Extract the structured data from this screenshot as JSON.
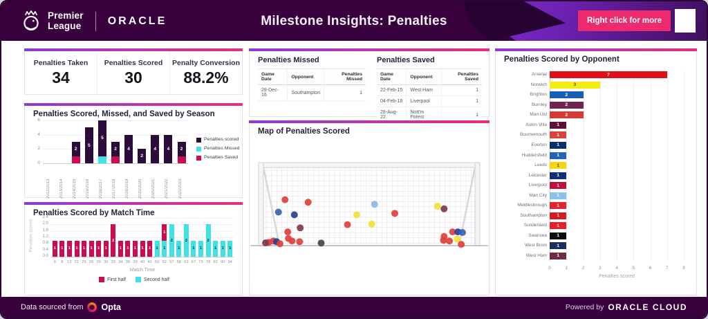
{
  "header": {
    "brand_line1": "Premier",
    "brand_line2": "League",
    "oracle_logo": "ORACLE",
    "title": "Milestone Insights: Penalties",
    "cta_button": "Right click for more"
  },
  "kpis": [
    {
      "label": "Penalties Taken",
      "value": "34"
    },
    {
      "label": "Penalties Scored",
      "value": "30"
    },
    {
      "label": "Penalty Conversion",
      "value": "88.2%"
    }
  ],
  "tables": {
    "missed": {
      "title": "Penalties Missed",
      "headers": [
        "Game Date",
        "Opponent",
        "Penalties Missed"
      ],
      "rows": [
        [
          "28-Dec-16",
          "Southampton",
          "1"
        ]
      ]
    },
    "saved": {
      "title": "Penalties Saved",
      "headers": [
        "Game Date",
        "Opponent",
        "Penalties Saved"
      ],
      "rows": [
        [
          "22-Feb-15",
          "West Ham",
          "1"
        ],
        [
          "04-Feb-18",
          "Liverpool",
          "1"
        ],
        [
          "28-Aug-22",
          "Nott'm Forest",
          "1"
        ]
      ]
    }
  },
  "map": {
    "title": "Map of Penalties Scored",
    "palette": {
      "red": "#e04038",
      "blue": "#3a62b5",
      "navy": "#27418f",
      "lightblue": "#8ab9e6",
      "yellow": "#f2e135",
      "maroon": "#7c3a52",
      "black": "#474747"
    },
    "points": [
      [
        10.2,
        41.2,
        "red"
      ],
      [
        21.1,
        44.5,
        "red"
      ],
      [
        52.5,
        47.1,
        "lightblue"
      ],
      [
        82.3,
        49.6,
        "yellow"
      ],
      [
        85.4,
        52.9,
        "maroon"
      ],
      [
        7.1,
        57.1,
        "blue"
      ],
      [
        14.6,
        60.5,
        "navy"
      ],
      [
        44.1,
        60.5,
        "yellow"
      ],
      [
        62.1,
        58.8,
        "red"
      ],
      [
        39.7,
        73.1,
        "red"
      ],
      [
        51.2,
        72.3,
        "yellow"
      ],
      [
        17.4,
        77.3,
        "maroon"
      ],
      [
        11.5,
        82.4,
        "red"
      ],
      [
        2.5,
        95.8,
        "red"
      ],
      [
        4.7,
        94.1,
        "red"
      ],
      [
        6.2,
        95.0,
        "navy"
      ],
      [
        7.8,
        97.5,
        "red"
      ],
      [
        11.8,
        90.8,
        "red"
      ],
      [
        17.1,
        95.0,
        "red"
      ],
      [
        27.3,
        96.6,
        "black"
      ],
      [
        89.4,
        82.4,
        "red"
      ],
      [
        91.9,
        82.4,
        "navy"
      ],
      [
        94.1,
        83.2,
        "blue"
      ],
      [
        85.4,
        88.2,
        "red"
      ],
      [
        85.1,
        93.3,
        "red"
      ],
      [
        87.9,
        94.1,
        "red"
      ],
      [
        91.6,
        91.6,
        "yellow"
      ],
      [
        93.5,
        98.3,
        "red"
      ],
      [
        1.0,
        96.5,
        "maroon"
      ],
      [
        13.5,
        94.0,
        "red"
      ]
    ]
  },
  "footer": {
    "left_prefix": "Data sourced from",
    "opta": "Opta",
    "right_prefix": "Powered by",
    "oracle_cloud": "ORACLE CLOUD"
  },
  "colors": {
    "header_bg": "#38003c",
    "accent_pink": "#ee2a6e",
    "panel_gradient_left": "#8b3bdb",
    "panel_gradient_right": "#ec2d7c",
    "scored_dark": "#2c0c3a",
    "saved_crimson": "#cb0c51",
    "missed_cyan": "#41e2e5"
  },
  "chart_data": [
    {
      "id": "season",
      "type": "bar",
      "stacked": true,
      "title": "Penalties Scored, Missed, and Saved by Season",
      "categories": [
        "2012/2013",
        "2013/2014",
        "2014/2015",
        "2015/2016",
        "2016/2017",
        "2017/2018",
        "2018/2019",
        "2019/2020",
        "2020/2021",
        "2021/2022",
        "2022/2023"
      ],
      "series": [
        {
          "name": "Penalties scored",
          "color": "#2c0c3a",
          "values": [
            0,
            0,
            2,
            5,
            5,
            2,
            4,
            2,
            4,
            4,
            2
          ]
        },
        {
          "name": "Penalties Missed",
          "color": "#41e2e5",
          "values": [
            0,
            0,
            0,
            0,
            1,
            0,
            0,
            0,
            0,
            0,
            0
          ]
        },
        {
          "name": "Penalties Saved",
          "color": "#cb0c51",
          "values": [
            0,
            0,
            1,
            0,
            0,
            1,
            0,
            0,
            0,
            0,
            1
          ]
        }
      ],
      "ylim": [
        0,
        6
      ],
      "yticks": [
        0,
        2,
        4,
        6
      ],
      "legend_position": "right",
      "grid": true
    },
    {
      "id": "match_time",
      "type": "bar",
      "stacked": true,
      "title": "Penalties Scored by Match Time",
      "xlabel": "Match Time",
      "ylabel": "Penalties scored",
      "categories": [
        "6",
        "8",
        "12",
        "21",
        "25",
        "28",
        "29",
        "30",
        "33",
        "34",
        "38",
        "39",
        "40",
        "41",
        "50",
        "52",
        "57",
        "58",
        "63",
        "67",
        "73",
        "78",
        "82",
        "90",
        "94"
      ],
      "series": [
        {
          "name": "First half",
          "color": "#cb0c51",
          "values": [
            1,
            1,
            1,
            1,
            1,
            1,
            1,
            1,
            2,
            1,
            1,
            1,
            1,
            1,
            0,
            1,
            0,
            0,
            0,
            0,
            0,
            0,
            0,
            0,
            0
          ]
        },
        {
          "name": "Second half",
          "color": "#41e2e5",
          "values": [
            0,
            0,
            0,
            0,
            0,
            0,
            0,
            0,
            0,
            0,
            0,
            0,
            0,
            0,
            1,
            1,
            2,
            1,
            2,
            1,
            1,
            2,
            1,
            1,
            1
          ]
        }
      ],
      "ylim": [
        0,
        2.4
      ],
      "yticks": [
        0,
        0.4,
        0.8,
        1.2,
        1.6,
        2.0,
        2.4
      ],
      "legend_position": "bottom",
      "grid": true
    },
    {
      "id": "by_opponent",
      "type": "bar",
      "horizontal": true,
      "title": "Penalties Scored by Opponent",
      "xlabel": "Penalties scored",
      "categories": [
        "Arsenal",
        "Norwich",
        "Brighton",
        "Burnley",
        "Man Utd",
        "Aston Villa",
        "Bournemouth",
        "Everton",
        "Huddersfield",
        "Leeds",
        "Leicester",
        "Liverpool",
        "Man City",
        "Middlesbrough",
        "Southampton",
        "Sunderland",
        "Swansea",
        "West Brom",
        "West Ham"
      ],
      "values": [
        7,
        3,
        2,
        2,
        2,
        1,
        1,
        1,
        1,
        1,
        1,
        1,
        1,
        1,
        1,
        1,
        1,
        1,
        1
      ],
      "colors": [
        "#e20f17",
        "#f6eb0e",
        "#1560b2",
        "#722550",
        "#da3832",
        "#5c1237",
        "#d8433c",
        "#0a2d6e",
        "#1f66b0",
        "#f8d511",
        "#0d2e7a",
        "#c40f3c",
        "#8cc1e8",
        "#e1242e",
        "#d71920",
        "#ec1c24",
        "#0c0c0c",
        "#1b2f5e",
        "#702c3f"
      ],
      "dark_label_indices": [
        1,
        9
      ],
      "xlim": [
        0,
        8
      ],
      "xticks": [
        0,
        1,
        2,
        3,
        4,
        5,
        6,
        7,
        8
      ],
      "grid": true
    }
  ]
}
